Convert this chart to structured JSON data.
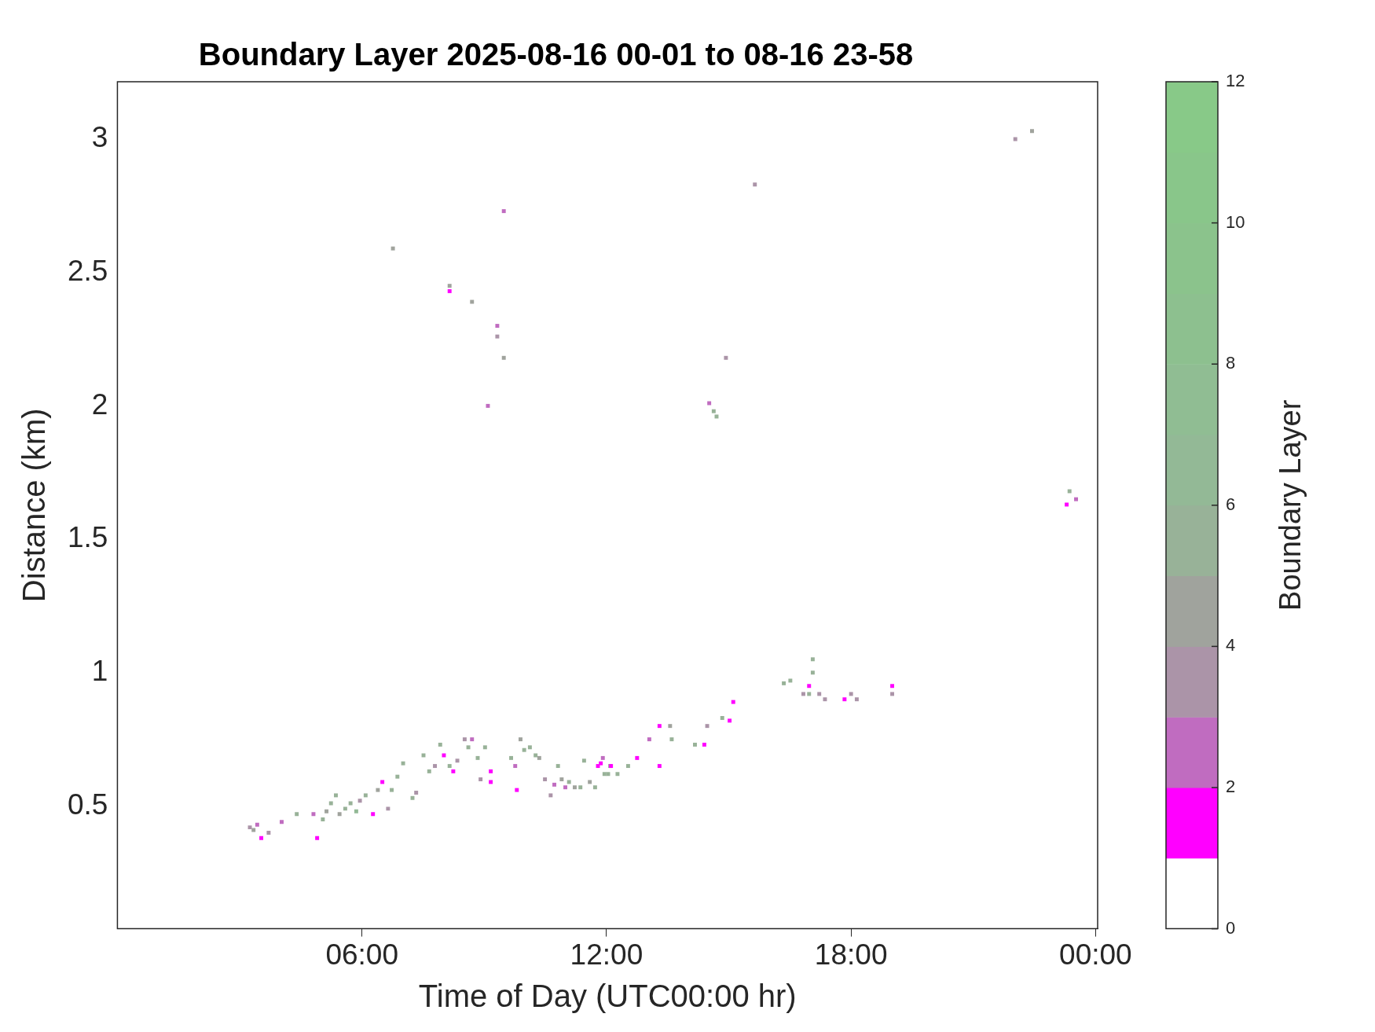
{
  "chart_data": {
    "type": "scatter",
    "title": "Boundary Layer 2025-08-16 00-01 to 08-16 23-58",
    "xlabel": "Time of Day (UTC00:00 hr)",
    "ylabel": "Distance (km)",
    "clabel": "Boundary Layer",
    "marker": "square",
    "grid": false,
    "legend": false,
    "xlim": [
      0,
      24.05
    ],
    "xticks": [
      {
        "value": 6,
        "label": "06:00"
      },
      {
        "value": 12,
        "label": "12:00"
      },
      {
        "value": 18,
        "label": "18:00"
      },
      {
        "value": 24,
        "label": "00:00"
      }
    ],
    "ylim": [
      0.04,
      3.215
    ],
    "yticks": [
      0.5,
      1,
      1.5,
      2,
      2.5,
      3
    ],
    "clim": [
      0,
      12
    ],
    "cticks": [
      0,
      2,
      4,
      6,
      8,
      10,
      12
    ],
    "x": [
      3.25,
      3.34,
      3.43,
      3.53,
      3.71,
      4.03,
      4.4,
      4.81,
      4.9,
      5.04,
      5.13,
      5.24,
      5.36,
      5.45,
      5.59,
      5.72,
      5.86,
      5.95,
      6.09,
      6.27,
      6.39,
      6.5,
      6.64,
      6.73,
      6.87,
      7.01,
      7.24,
      7.33,
      7.51,
      7.65,
      7.79,
      7.92,
      8.01,
      8.15,
      8.24,
      8.34,
      8.52,
      8.61,
      8.7,
      8.84,
      8.91,
      9.02,
      9.16,
      9.16,
      9.66,
      9.76,
      9.8,
      9.89,
      9.98,
      10.12,
      10.26,
      10.35,
      10.49,
      10.63,
      10.72,
      10.81,
      10.9,
      10.99,
      11.08,
      11.22,
      11.36,
      11.45,
      11.59,
      11.72,
      11.79,
      11.86,
      11.91,
      11.95,
      12.04,
      12.09,
      12.11,
      12.27,
      12.53,
      12.75,
      13.05,
      13.3,
      13.3,
      13.56,
      13.6,
      14.17,
      14.4,
      14.47,
      14.84,
      15.02,
      15.11,
      16.35,
      16.51,
      16.83,
      16.97,
      16.97,
      17.06,
      17.06,
      17.22,
      17.36,
      17.84,
      18.0,
      18.14,
      19.01,
      19.01,
      6.76,
      8.15,
      8.15,
      8.7,
      9.32,
      9.32,
      9.48,
      9.09,
      9.48,
      14.52,
      14.63,
      14.7,
      14.93,
      15.64,
      22.03,
      22.44,
      23.29,
      23.36,
      23.52
    ],
    "values": [
      0.42,
      0.41,
      0.43,
      0.38,
      0.4,
      0.44,
      0.47,
      0.47,
      0.38,
      0.45,
      0.48,
      0.51,
      0.54,
      0.47,
      0.49,
      0.51,
      0.48,
      0.52,
      0.54,
      0.47,
      0.56,
      0.59,
      0.49,
      0.56,
      0.61,
      0.66,
      0.53,
      0.55,
      0.69,
      0.63,
      0.65,
      0.73,
      0.69,
      0.65,
      0.63,
      0.67,
      0.75,
      0.72,
      0.75,
      0.68,
      0.6,
      0.72,
      0.63,
      0.59,
      0.68,
      0.65,
      0.56,
      0.75,
      0.71,
      0.72,
      0.69,
      0.68,
      0.6,
      0.54,
      0.58,
      0.65,
      0.6,
      0.57,
      0.59,
      0.57,
      0.57,
      0.67,
      0.59,
      0.57,
      0.65,
      0.66,
      0.68,
      0.62,
      0.62,
      0.65,
      0.65,
      0.62,
      0.65,
      0.68,
      0.75,
      0.8,
      0.65,
      0.8,
      0.75,
      0.73,
      0.73,
      0.8,
      0.83,
      0.82,
      0.89,
      0.96,
      0.97,
      0.92,
      0.95,
      0.92,
      1.05,
      1.0,
      0.92,
      0.9,
      0.9,
      0.92,
      0.9,
      0.95,
      0.92,
      2.59,
      2.45,
      2.43,
      2.39,
      2.3,
      2.26,
      2.18,
      2.0,
      2.73,
      2.01,
      1.98,
      1.96,
      2.18,
      2.83,
      3.0,
      3.03,
      1.63,
      1.68,
      1.65
    ],
    "cvalues": [
      3,
      4,
      2,
      1,
      3,
      2,
      5,
      2,
      1,
      5,
      4,
      5,
      5,
      4,
      5,
      5,
      6,
      3,
      5,
      1,
      4,
      1,
      3,
      5,
      5,
      5,
      5,
      3,
      5,
      5,
      3,
      5,
      1,
      5,
      1,
      3,
      3,
      5,
      2,
      5,
      3,
      5,
      1,
      1,
      5,
      2,
      1,
      4,
      5,
      5,
      5,
      4,
      3,
      3,
      2,
      5,
      4,
      2,
      5,
      4,
      5,
      5,
      4,
      5,
      1,
      1,
      2,
      5,
      5,
      5,
      1,
      5,
      5,
      1,
      2,
      1,
      1,
      4,
      5,
      5,
      1,
      3,
      5,
      1,
      1,
      5,
      5,
      3,
      1,
      5,
      5,
      5,
      3,
      3,
      1,
      3,
      3,
      1,
      3,
      4,
      4,
      1,
      4,
      2,
      3,
      4,
      2,
      2,
      2,
      5,
      5,
      3,
      3,
      3,
      4,
      1,
      5,
      2
    ]
  }
}
